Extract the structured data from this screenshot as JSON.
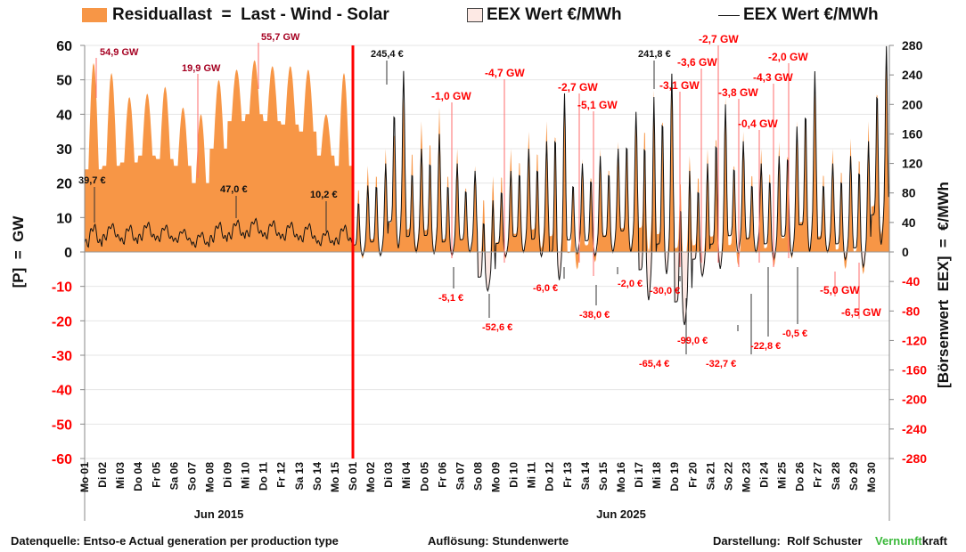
{
  "legend": {
    "residual": "Residuallast  =  Last - Wind - Solar",
    "eex_area": "EEX Wert €/MWh",
    "eex_line": "EEX Wert €/MWh"
  },
  "colors": {
    "residual_fill": "#f79646",
    "eex_neg_fill": "#fde9e4",
    "eex_line": "#111111",
    "divider": "#ff0000",
    "negative_label": "#ff0000",
    "gw_label_2015": "#a50021",
    "grid": "#e6e6e6",
    "brand_green": "#3cb93c"
  },
  "footer": {
    "source": "Datenquelle: Entso-e  Actual generation per production type",
    "resolution": "Auflösung: Stundenwerte",
    "author": "Darstellung:  Rolf Schuster",
    "brand_green": "Vernunft",
    "brand_black": "kraft"
  },
  "chart_data": {
    "type": "area+line",
    "title": "",
    "ylabel_left": "[P]  =  GW",
    "ylabel_right": "[Börsenwert  EEX]  =  €/MWh",
    "ylim_left": [
      -60,
      60
    ],
    "ylim_right": [
      -280,
      280
    ],
    "yticks_left": [
      60,
      50,
      40,
      30,
      20,
      10,
      0,
      -10,
      -20,
      -30,
      -40,
      -50,
      -60
    ],
    "yticks_right": [
      280,
      240,
      200,
      160,
      120,
      80,
      40,
      0,
      -40,
      -80,
      -120,
      -160,
      -200,
      -240,
      -280
    ],
    "grid": true,
    "resolution": "hourly",
    "periods": [
      {
        "label": "Jun 2015",
        "day_labels": [
          "Mo 01",
          "Di 02",
          "Mi 03",
          "Do 04",
          "Fr 05",
          "Sa 06",
          "So 07",
          "Mo 08",
          "Di 09",
          "Mi 10",
          "Do 11",
          "Fr 12",
          "Sa 13",
          "So 14",
          "Mo 15"
        ],
        "residual_daily_min_gw": [
          24,
          25,
          26,
          28,
          27,
          25,
          20,
          30,
          38,
          40,
          38,
          37,
          35,
          28,
          25
        ],
        "residual_daily_max_gw": [
          54.9,
          52,
          45,
          46,
          48,
          42,
          40,
          50,
          53,
          55.7,
          54,
          54,
          53,
          40,
          52
        ],
        "price_daily_min_eur": [
          12,
          20,
          15,
          20,
          18,
          16,
          10,
          18,
          22,
          25,
          22,
          20,
          18,
          12,
          15
        ],
        "price_daily_max_eur": [
          39.7,
          40,
          38,
          42,
          38,
          32,
          28,
          42,
          45,
          47,
          44,
          42,
          40,
          30,
          38
        ]
      },
      {
        "label": "Jun 2025",
        "day_labels": [
          "So 01",
          "Mo 02",
          "Di 03",
          "Mi 04",
          "Do 05",
          "Fr 06",
          "Sa 07",
          "So 08",
          "Mo 09",
          "Di 10",
          "Mi 11",
          "Do 12",
          "Fr 13",
          "Sa 14",
          "So 15",
          "Mo 16",
          "Di 17",
          "Mi 18",
          "Do 19",
          "Fr 20",
          "Sa 21",
          "So 22",
          "Mo 23",
          "Di 24",
          "Mi 25",
          "Do 26",
          "Fr 27",
          "Sa 28",
          "So 29",
          "Mo 30"
        ],
        "residual_daily_min_gw": [
          -2,
          -1,
          2,
          1,
          0,
          -1.0,
          0,
          -4.7,
          -2,
          0,
          1,
          -2.7,
          -5.1,
          -3,
          0,
          1,
          0,
          -3.1,
          -3.6,
          -3,
          -2.7,
          -3.8,
          -0.4,
          -4.3,
          -2.0,
          1,
          0,
          -5.0,
          -6.5,
          5
        ],
        "residual_daily_max_gw": [
          25,
          30,
          45,
          38,
          42,
          30,
          25,
          22,
          30,
          35,
          38,
          46,
          27,
          30,
          32,
          40,
          47,
          52,
          28,
          30,
          45,
          35,
          30,
          32,
          38,
          52,
          30,
          33,
          38,
          60
        ],
        "price_daily_min_eur": [
          -5,
          -5.1,
          5,
          0,
          -2,
          -5.1,
          0,
          -52.6,
          -6,
          0,
          -6.0,
          -38.0,
          -2.0,
          -5,
          0,
          0,
          -65.4,
          -30.0,
          -99.0,
          -32.7,
          -22.8,
          -0.5,
          0,
          -10,
          -5,
          0,
          0,
          -10,
          -20,
          10
        ],
        "price_daily_max_eur": [
          90,
          120,
          245.4,
          140,
          160,
          120,
          110,
          70,
          110,
          140,
          150,
          215,
          120,
          130,
          140,
          190,
          210,
          241.8,
          110,
          120,
          200,
          150,
          120,
          130,
          170,
          245,
          120,
          130,
          150,
          279
        ]
      }
    ],
    "annotations_gw": [
      {
        "text": "54,9 GW",
        "period": "Jun 2015"
      },
      {
        "text": "19,9 GW",
        "period": "Jun 2015"
      },
      {
        "text": "55,7 GW",
        "period": "Jun 2015"
      },
      {
        "text": "-1,0 GW",
        "period": "Jun 2025"
      },
      {
        "text": "-4,7 GW",
        "period": "Jun 2025"
      },
      {
        "text": "-2,7 GW",
        "period": "Jun 2025"
      },
      {
        "text": "-5,1 GW",
        "period": "Jun 2025"
      },
      {
        "text": "-3,1 GW",
        "period": "Jun 2025"
      },
      {
        "text": "-3,6 GW",
        "period": "Jun 2025"
      },
      {
        "text": "-2,7 GW",
        "period": "Jun 2025"
      },
      {
        "text": "-3,8 GW",
        "period": "Jun 2025"
      },
      {
        "text": "-0,4 GW",
        "period": "Jun 2025"
      },
      {
        "text": "-4,3 GW",
        "period": "Jun 2025"
      },
      {
        "text": "-2,0 GW",
        "period": "Jun 2025"
      },
      {
        "text": "-5,0 GW",
        "period": "Jun 2025"
      },
      {
        "text": "-6,5 GW",
        "period": "Jun 2025"
      }
    ],
    "annotations_eur": [
      {
        "text": "39,7 €"
      },
      {
        "text": "47,0 €"
      },
      {
        "text": "10,2 €"
      },
      {
        "text": "245,4 €"
      },
      {
        "text": "241,8 €"
      },
      {
        "text": "-5,1 €"
      },
      {
        "text": "-52,6 €"
      },
      {
        "text": "-6,0 €"
      },
      {
        "text": "-38,0 €"
      },
      {
        "text": "-2,0 €"
      },
      {
        "text": "-65,4 €"
      },
      {
        "text": "-30,0 €"
      },
      {
        "text": "-99,0 €"
      },
      {
        "text": "-32,7 €"
      },
      {
        "text": "-22,8 €"
      },
      {
        "text": "-0,5 €"
      }
    ]
  }
}
